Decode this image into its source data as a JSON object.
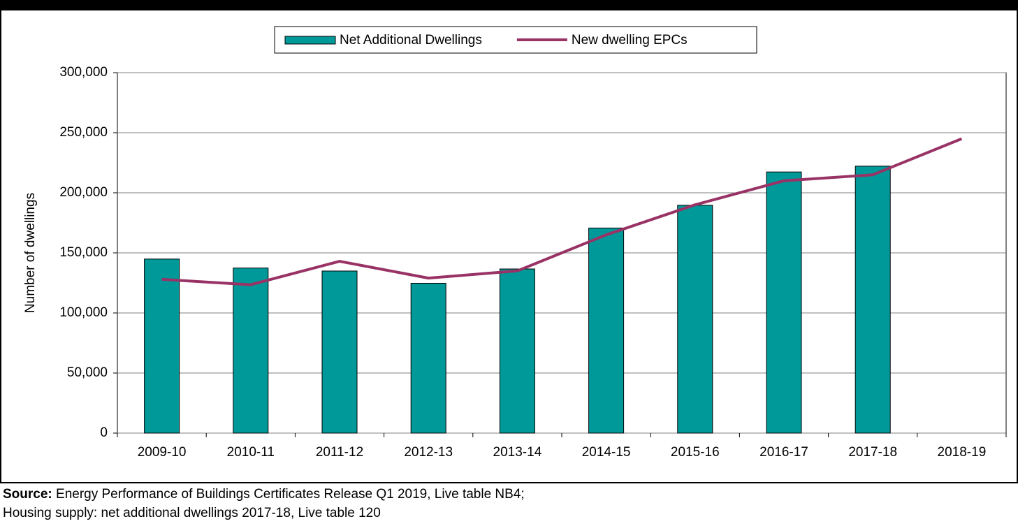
{
  "chart_data": {
    "type": "bar_line",
    "categories": [
      "2009-10",
      "2010-11",
      "2011-12",
      "2012-13",
      "2013-14",
      "2014-15",
      "2015-16",
      "2016-17",
      "2017-18",
      "2018-19"
    ],
    "series": [
      {
        "name": "Net Additional Dwellings",
        "type": "bar",
        "color": "#009999",
        "values": [
          144870,
          137390,
          134900,
          124720,
          136610,
          170690,
          189650,
          217350,
          222190,
          null
        ]
      },
      {
        "name": "New dwelling EPCs",
        "type": "line",
        "color": "#993366",
        "values": [
          128000,
          123500,
          143000,
          129000,
          135000,
          165000,
          190000,
          210000,
          215000,
          245000
        ]
      }
    ],
    "y_label": "Number  of dwellings",
    "ylim": [
      0,
      300000
    ],
    "yticks": [
      0,
      {
        "value": 50000,
        "label": "50,000"
      },
      {
        "value": 100000,
        "label": "100,000"
      },
      {
        "value": 150000,
        "label": "150,000"
      },
      {
        "value": 200000,
        "label": "200,000"
      },
      {
        "value": 250000,
        "label": "250,000"
      },
      {
        "value": 300000,
        "label": "300,000"
      }
    ],
    "grid": true,
    "legend": "top",
    "source_label": "Source:",
    "source_lines": [
      "Energy Performance of Buildings Certificates Release Q1 2019, Live table NB4;",
      "Housing supply: net additional dwellings 2017-18, Live table 120"
    ]
  }
}
